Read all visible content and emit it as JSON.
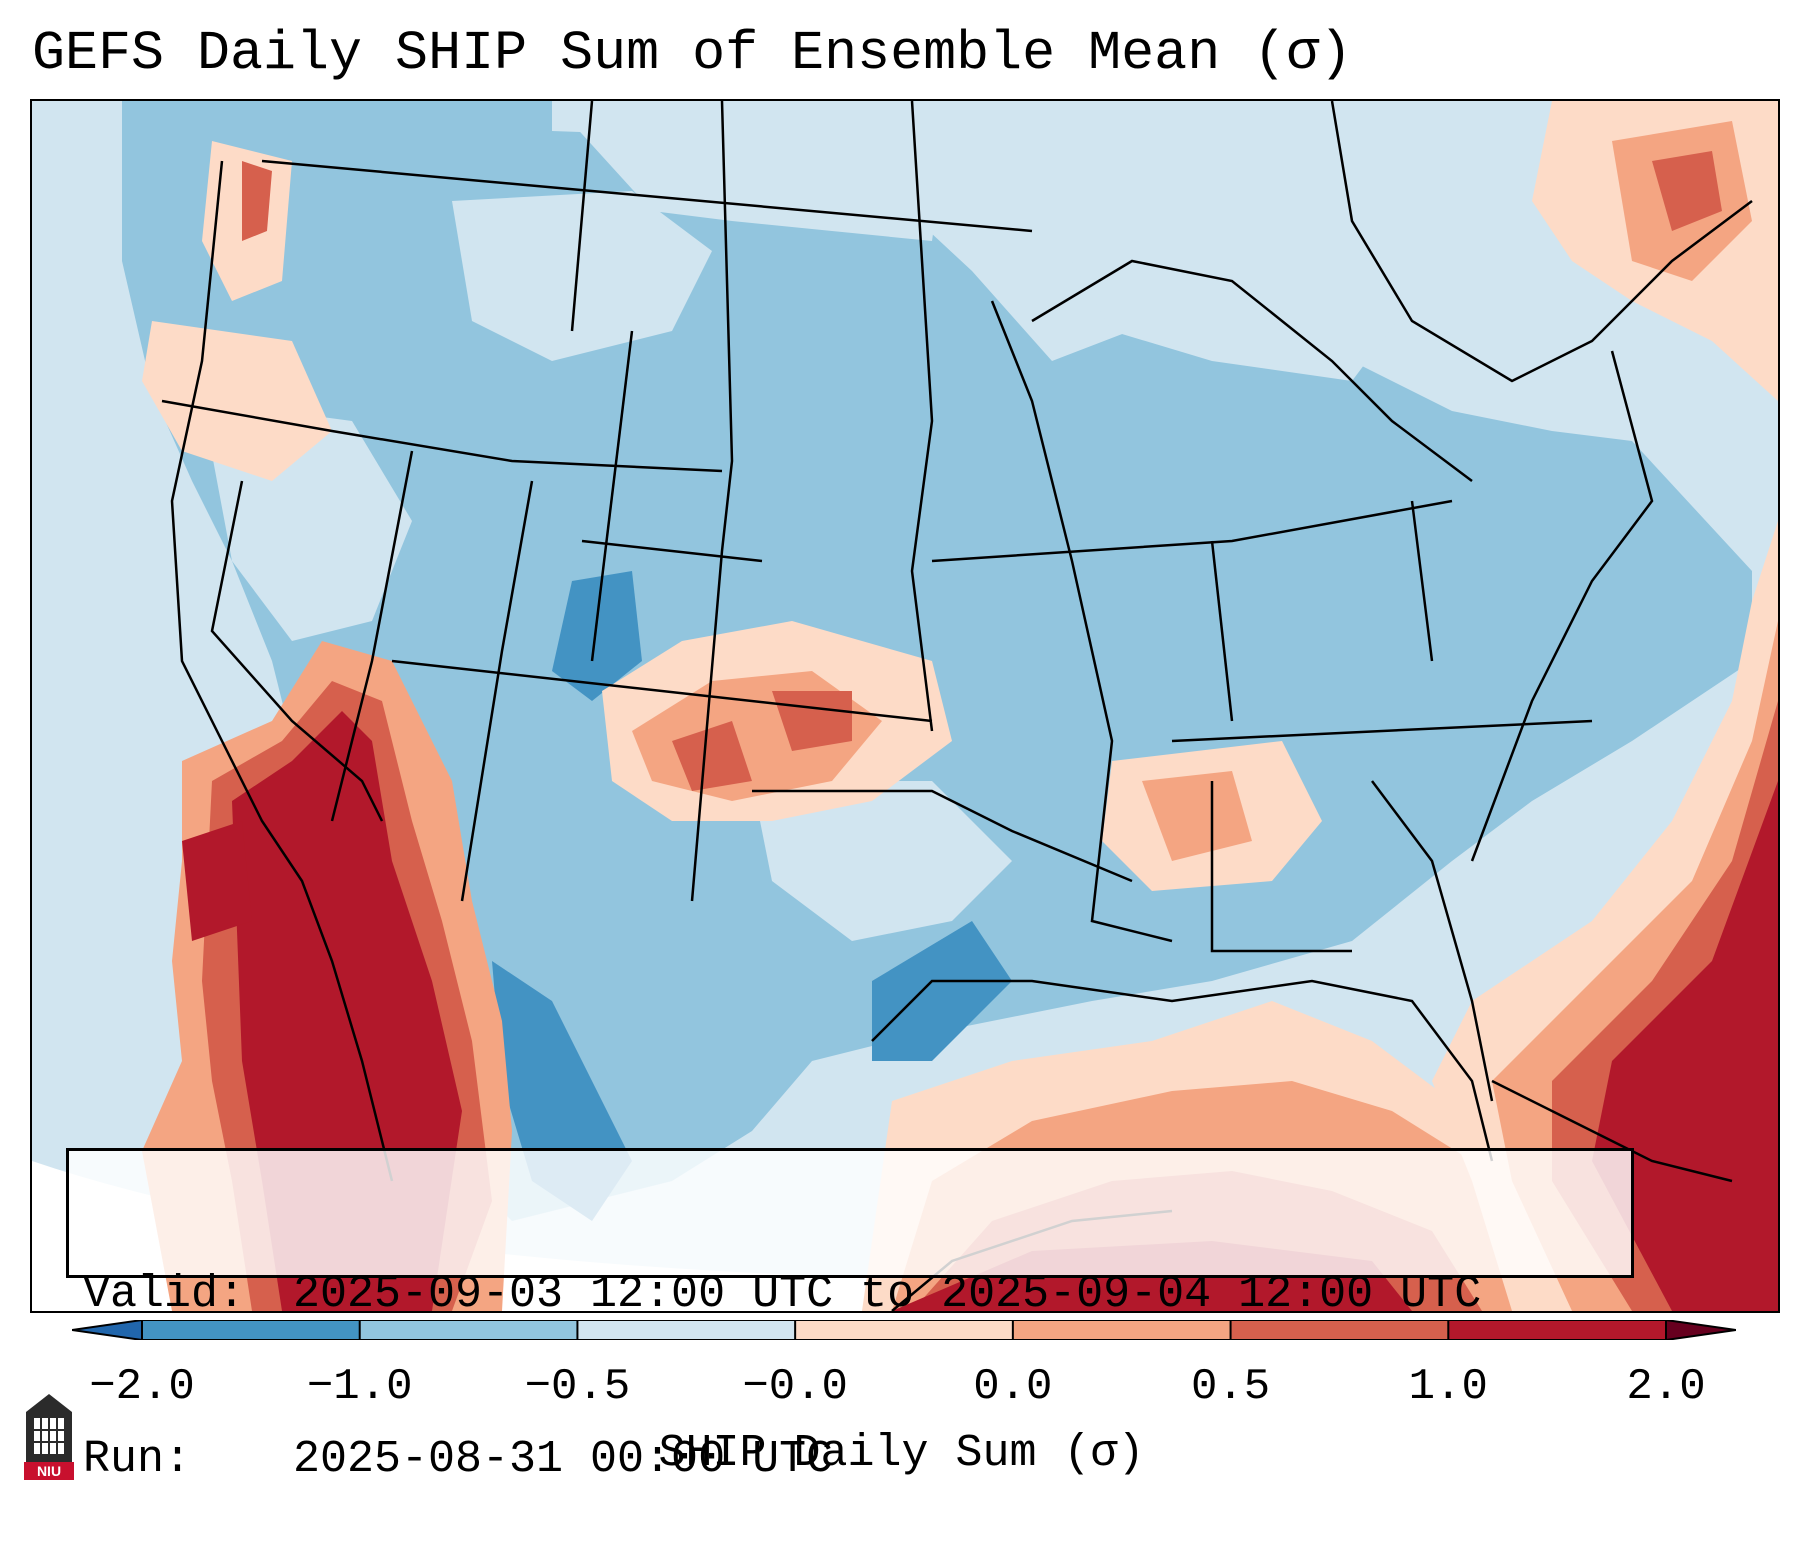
{
  "title": "GEFS Daily SHIP Sum of Ensemble Mean (σ)",
  "info": {
    "valid_label": "Valid:",
    "valid_value": "2025-09-03 12:00 UTC to 2025-09-04 12:00 UTC",
    "run_label": "Run:",
    "run_value": "2025-08-31 00:00 UTC"
  },
  "colorbar": {
    "label": "SHIP Daily Sum (σ)",
    "tick_labels": [
      "−2.0",
      "−1.0",
      "−0.5",
      "−0.0",
      "0.0",
      "0.5",
      "1.0",
      "2.0"
    ],
    "colors": [
      "#4393c3",
      "#92c5de",
      "#d1e5f0",
      "#fddbc7",
      "#f4a582",
      "#d6604d",
      "#b2182b"
    ],
    "under_color": "#2166ac",
    "over_color": "#67001f"
  },
  "logo": {
    "text": "NIU",
    "icon": "university-tower-logo"
  }
}
